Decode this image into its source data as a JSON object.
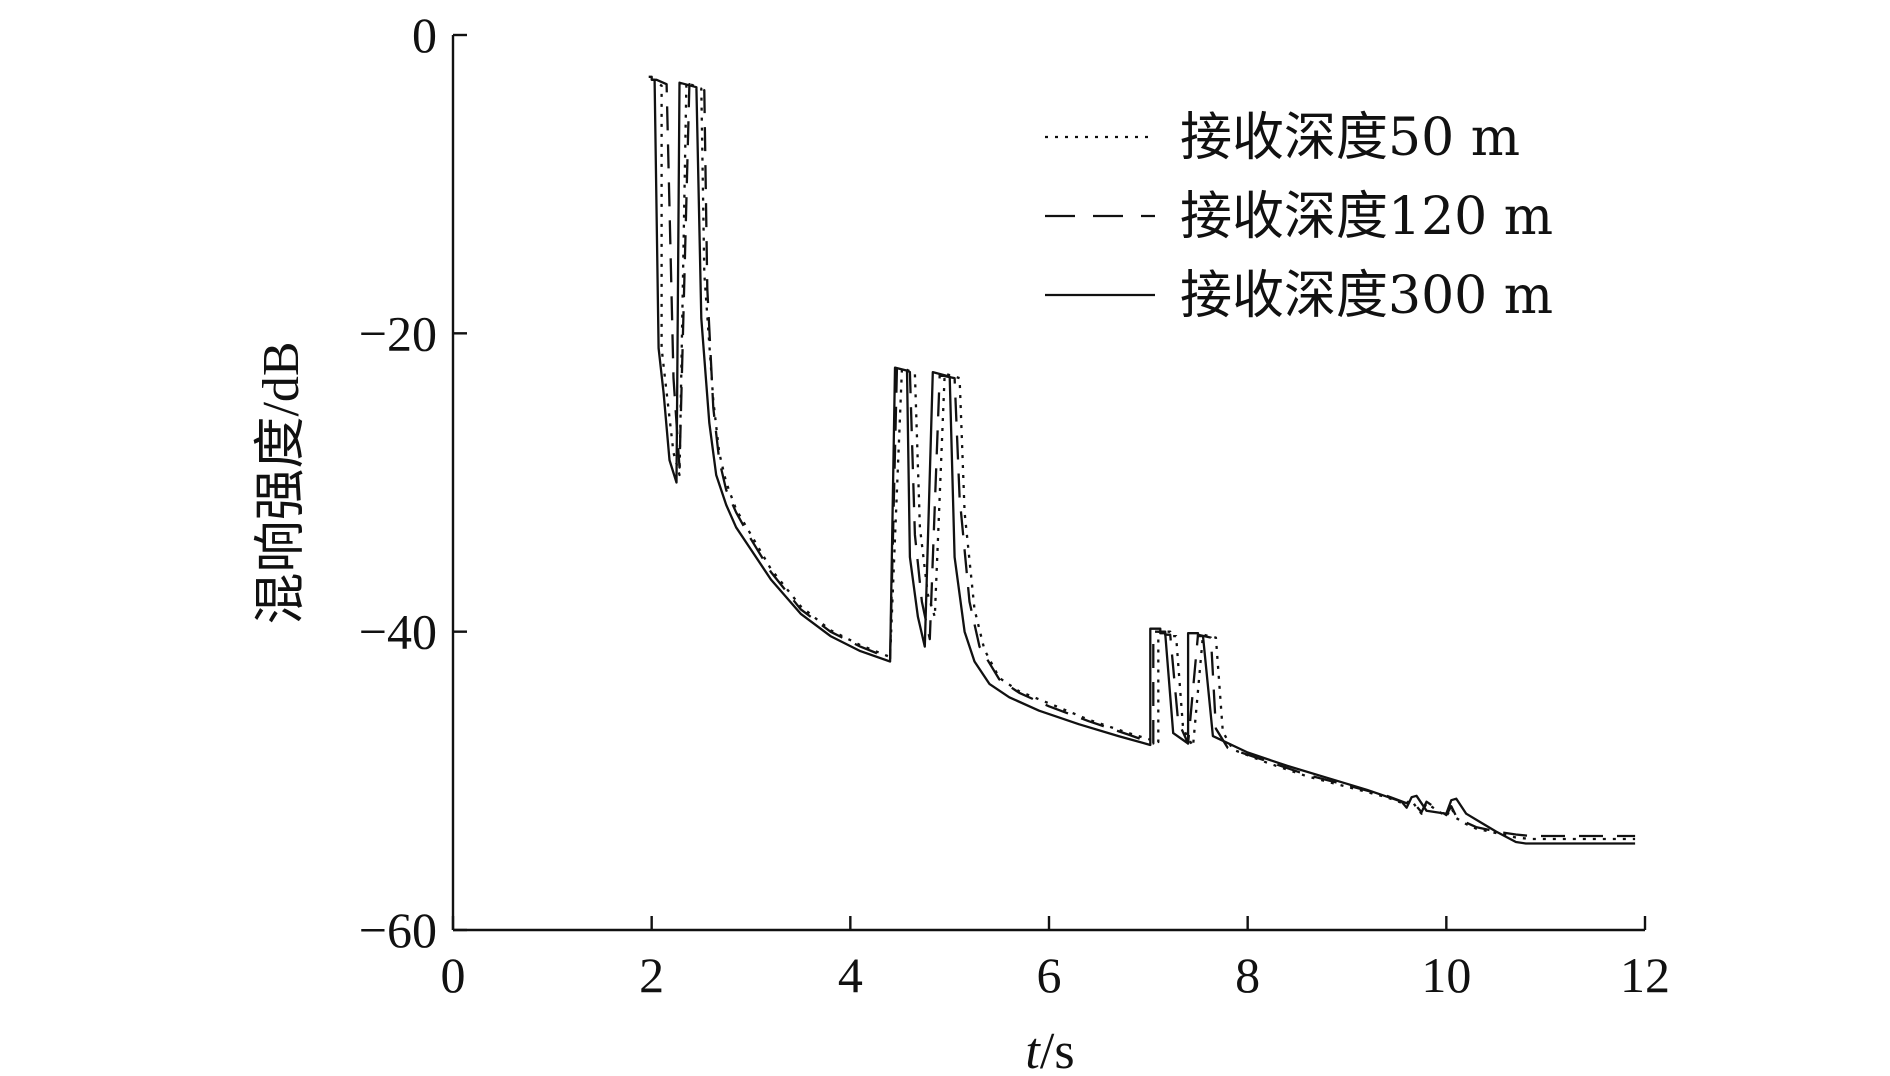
{
  "chart_data": {
    "type": "line",
    "xlabel_italic": "t",
    "xlabel_unit": "/s",
    "ylabel": "混响强度/dB",
    "xlim": [
      0,
      12
    ],
    "ylim": [
      -60,
      0
    ],
    "xticks": [
      0,
      2,
      4,
      6,
      8,
      10,
      12
    ],
    "xtick_labels": [
      "0",
      "2",
      "4",
      "6",
      "8",
      "10",
      "12"
    ],
    "yticks": [
      0,
      -20,
      -40,
      -60
    ],
    "ytick_labels": [
      "0",
      "−20",
      "−40",
      "−60"
    ],
    "grid": false,
    "legend_position": "top-right",
    "series": [
      {
        "name": "接收深度50 m",
        "style": "dotted",
        "color": "#111111",
        "x": [
          2.0,
          2.02,
          2.1,
          2.1,
          2.22,
          2.28,
          2.35,
          2.35,
          2.5,
          2.5,
          2.53,
          2.62,
          2.68,
          2.75,
          2.85,
          3.0,
          3.2,
          3.5,
          3.8,
          4.1,
          4.4,
          4.52,
          4.52,
          4.65,
          4.65,
          4.7,
          4.78,
          4.85,
          4.95,
          4.95,
          5.1,
          5.1,
          5.15,
          5.25,
          5.35,
          5.5,
          5.7,
          6.0,
          6.4,
          6.8,
          7.1,
          7.1,
          7.22,
          7.22,
          7.28,
          7.35,
          7.45,
          7.55,
          7.55,
          7.68,
          7.68,
          7.75,
          7.85,
          8.2,
          8.6,
          9.0,
          9.4,
          9.6,
          9.65,
          9.7,
          9.75,
          9.8,
          10.0,
          10.05,
          10.1,
          10.2,
          10.3,
          10.5,
          10.7,
          10.85,
          11.2,
          11.55,
          11.9
        ],
        "y": [
          -3.0,
          -3.0,
          -3.4,
          -21.0,
          -28.0,
          -29.5,
          -3.2,
          -3.2,
          -3.6,
          -3.6,
          -16.0,
          -24.5,
          -28.0,
          -30.0,
          -31.8,
          -33.5,
          -35.8,
          -38.3,
          -39.9,
          -40.9,
          -41.7,
          -22.3,
          -22.3,
          -22.7,
          -22.7,
          -33.0,
          -37.5,
          -39.0,
          -22.7,
          -22.7,
          -23.0,
          -23.0,
          -32.0,
          -38.5,
          -41.2,
          -43.1,
          -44.0,
          -44.8,
          -45.9,
          -46.8,
          -47.4,
          -40.0,
          -40.0,
          -40.3,
          -40.3,
          -46.5,
          -47.7,
          -40.2,
          -40.2,
          -40.4,
          -40.4,
          -46.7,
          -47.9,
          -48.8,
          -49.7,
          -50.4,
          -51.1,
          -51.6,
          -51.3,
          -51.8,
          -52.2,
          -51.5,
          -52.4,
          -51.8,
          -52.5,
          -52.9,
          -53.2,
          -53.5,
          -53.8,
          -53.9,
          -53.9,
          -53.9,
          -53.9
        ]
      },
      {
        "name": "接收深度120 m",
        "style": "dashed",
        "color": "#111111",
        "x": [
          2.0,
          2.05,
          2.05,
          2.15,
          2.15,
          2.22,
          2.28,
          2.38,
          2.38,
          2.53,
          2.53,
          2.56,
          2.62,
          2.68,
          2.75,
          2.85,
          3.0,
          3.2,
          3.5,
          3.8,
          4.1,
          4.4,
          4.47,
          4.47,
          4.6,
          4.6,
          4.65,
          4.72,
          4.8,
          4.9,
          4.9,
          5.05,
          5.05,
          5.1,
          5.2,
          5.3,
          5.5,
          5.7,
          6.0,
          6.4,
          6.8,
          7.05,
          7.05,
          7.17,
          7.17,
          7.22,
          7.3,
          7.4,
          7.5,
          7.5,
          7.63,
          7.63,
          7.68,
          7.8,
          8.2,
          8.6,
          9.0,
          9.4,
          9.6,
          9.65,
          9.7,
          9.75,
          9.8,
          10.0,
          10.05,
          10.1,
          10.2,
          10.3,
          10.5,
          10.7,
          10.85,
          11.2,
          11.55,
          11.9
        ],
        "y": [
          -3.0,
          -3.0,
          -3.0,
          -3.3,
          -3.3,
          -23.0,
          -29.0,
          -3.3,
          -3.3,
          -3.7,
          -3.7,
          -17.0,
          -25.0,
          -28.5,
          -30.5,
          -32.0,
          -33.8,
          -36.0,
          -38.5,
          -40.0,
          -41.0,
          -41.8,
          -22.2,
          -22.2,
          -22.6,
          -22.6,
          -33.5,
          -38.0,
          -40.5,
          -22.8,
          -22.8,
          -23.0,
          -23.0,
          -31.0,
          -38.0,
          -41.0,
          -43.2,
          -44.1,
          -45.0,
          -46.0,
          -46.9,
          -47.5,
          -40.0,
          -40.0,
          -40.2,
          -40.2,
          -46.0,
          -47.5,
          -40.2,
          -40.2,
          -40.4,
          -40.4,
          -46.5,
          -47.8,
          -48.7,
          -49.6,
          -50.3,
          -51.0,
          -51.5,
          -51.2,
          -51.7,
          -52.1,
          -51.4,
          -52.3,
          -51.7,
          -52.4,
          -52.8,
          -53.1,
          -53.4,
          -53.6,
          -53.7,
          -53.7,
          -53.7,
          -53.7
        ]
      },
      {
        "name": "接收深度300 m",
        "style": "solid",
        "color": "#111111",
        "x": [
          1.97,
          2.0,
          2.0,
          2.03,
          2.07,
          2.12,
          2.18,
          2.25,
          2.28,
          2.28,
          2.45,
          2.45,
          2.5,
          2.58,
          2.65,
          2.75,
          2.85,
          3.0,
          3.2,
          3.5,
          3.8,
          4.1,
          4.4,
          4.45,
          4.45,
          4.57,
          4.57,
          4.6,
          4.68,
          4.75,
          4.83,
          4.83,
          5.0,
          5.0,
          5.05,
          5.15,
          5.25,
          5.4,
          5.6,
          5.9,
          6.3,
          6.7,
          7.02,
          7.02,
          7.12,
          7.12,
          7.17,
          7.25,
          7.4,
          7.4,
          7.5,
          7.5,
          7.55,
          7.65,
          8.0,
          8.4,
          8.8,
          9.2,
          9.55,
          9.6,
          9.65,
          9.7,
          9.8,
          10.0,
          10.05,
          10.1,
          10.2,
          10.35,
          10.5,
          10.7,
          10.8,
          11.2,
          11.55,
          11.9
        ],
        "y": [
          -2.8,
          -2.8,
          -3.0,
          -3.0,
          -21.0,
          -24.0,
          -28.5,
          -30.0,
          -3.2,
          -3.2,
          -3.5,
          -3.5,
          -19.0,
          -26.0,
          -29.5,
          -31.5,
          -33.0,
          -34.5,
          -36.5,
          -38.8,
          -40.3,
          -41.3,
          -42.0,
          -22.3,
          -22.3,
          -22.5,
          -22.5,
          -35.0,
          -39.0,
          -41.0,
          -22.6,
          -22.6,
          -22.9,
          -22.9,
          -35.0,
          -40.0,
          -42.0,
          -43.5,
          -44.4,
          -45.3,
          -46.2,
          -47.0,
          -47.6,
          -39.8,
          -39.8,
          -40.1,
          -40.1,
          -46.8,
          -47.5,
          -40.1,
          -40.1,
          -40.3,
          -40.3,
          -47.0,
          -48.1,
          -49.0,
          -49.8,
          -50.6,
          -51.4,
          -51.8,
          -51.1,
          -51.0,
          -52.0,
          -52.2,
          -51.3,
          -51.2,
          -52.2,
          -52.8,
          -53.4,
          -54.1,
          -54.2,
          -54.2,
          -54.2,
          -54.2
        ]
      }
    ]
  }
}
